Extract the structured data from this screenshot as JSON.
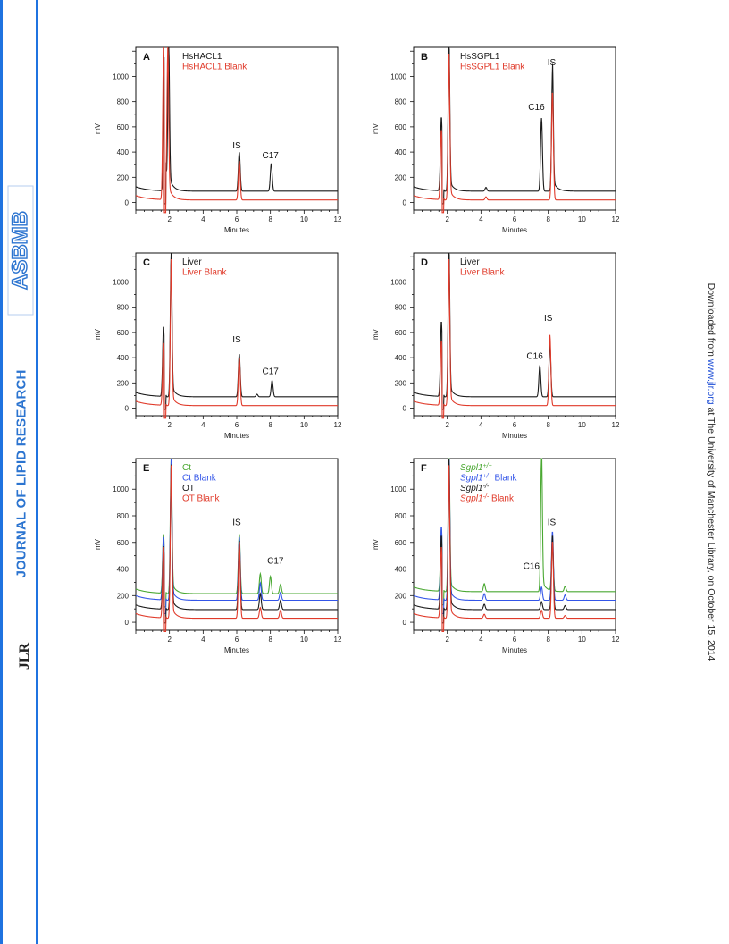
{
  "journal": {
    "title": "JOURNAL OF LIPID RESEARCH",
    "logo_text": "ASBMB",
    "jlr_mark": "JLR"
  },
  "download_note": {
    "prefix": "Downloaded from ",
    "link": "www.jlr.org",
    "suffix": " at The University of Manchester Library, on October 15, 2014"
  },
  "colors": {
    "sidebar_bar": "#1f73e0",
    "black": "#1a1a1a",
    "red": "#e03a2a",
    "green": "#4aa832",
    "blue": "#3355e8"
  },
  "chart_data": [
    {
      "panel": "A",
      "type": "line",
      "xlabel": "Minutes",
      "ylabel": "mV",
      "xticks": [
        2,
        4,
        6,
        8,
        10,
        12
      ],
      "yticks": [
        0,
        200,
        400,
        600,
        800,
        1000
      ],
      "xlim": [
        0,
        12
      ],
      "ylim": [
        -60,
        1230
      ],
      "series": [
        {
          "name": "HsHACL1",
          "color": "black",
          "baseline": 90,
          "peaks": [
            {
              "x": 1.7,
              "h": 1150
            },
            {
              "x": 1.95,
              "h": 1120
            },
            {
              "x": 6.15,
              "h": 310
            },
            {
              "x": 8.05,
              "h": 220
            }
          ]
        },
        {
          "name": "HsHACL1 Blank",
          "color": "red",
          "baseline": 20,
          "peaks": [
            {
              "x": 1.65,
              "h": 1160
            },
            {
              "x": 1.9,
              "h": 1140
            },
            {
              "x": 6.15,
              "h": 310
            }
          ]
        }
      ],
      "annotations": [
        {
          "text": "IS",
          "x": 6.0,
          "y": 430
        },
        {
          "text": "C17",
          "x": 8.0,
          "y": 350
        }
      ]
    },
    {
      "panel": "B",
      "type": "line",
      "xlabel": "Minutes",
      "ylabel": "mV",
      "xticks": [
        2,
        4,
        6,
        8,
        10,
        12
      ],
      "yticks": [
        0,
        200,
        400,
        600,
        800,
        1000
      ],
      "xlim": [
        0,
        12
      ],
      "ylim": [
        -60,
        1230
      ],
      "series": [
        {
          "name": "HsSGPL1",
          "color": "black",
          "baseline": 90,
          "peaks": [
            {
              "x": 1.65,
              "h": 590
            },
            {
              "x": 2.1,
              "h": 1130
            },
            {
              "x": 4.3,
              "h": 30
            },
            {
              "x": 7.6,
              "h": 580
            },
            {
              "x": 8.25,
              "h": 940
            }
          ]
        },
        {
          "name": "HsSGPL1 Blank",
          "color": "red",
          "baseline": 20,
          "peaks": [
            {
              "x": 1.65,
              "h": 560
            },
            {
              "x": 2.1,
              "h": 1070
            },
            {
              "x": 4.3,
              "h": 25
            },
            {
              "x": 8.25,
              "h": 860
            }
          ]
        }
      ],
      "annotations": [
        {
          "text": "IS",
          "x": 8.2,
          "y": 1090
        },
        {
          "text": "C16",
          "x": 7.3,
          "y": 735
        }
      ]
    },
    {
      "panel": "C",
      "type": "line",
      "xlabel": "Minutes",
      "ylabel": "mV",
      "xticks": [
        2,
        4,
        6,
        8,
        10,
        12
      ],
      "yticks": [
        0,
        200,
        400,
        600,
        800,
        1000
      ],
      "xlim": [
        0,
        12
      ],
      "ylim": [
        -60,
        1230
      ],
      "series": [
        {
          "name": "Liver",
          "color": "black",
          "baseline": 90,
          "peaks": [
            {
              "x": 1.65,
              "h": 560
            },
            {
              "x": 2.1,
              "h": 1130
            },
            {
              "x": 6.15,
              "h": 340
            },
            {
              "x": 7.2,
              "h": 20
            },
            {
              "x": 8.1,
              "h": 130
            }
          ]
        },
        {
          "name": "Liver Blank",
          "color": "red",
          "baseline": 20,
          "peaks": [
            {
              "x": 1.65,
              "h": 500
            },
            {
              "x": 2.1,
              "h": 1070
            },
            {
              "x": 6.15,
              "h": 380
            }
          ]
        }
      ],
      "annotations": [
        {
          "text": "IS",
          "x": 6.0,
          "y": 520
        },
        {
          "text": "C17",
          "x": 8.0,
          "y": 270
        }
      ]
    },
    {
      "panel": "D",
      "type": "line",
      "xlabel": "Minutes",
      "ylabel": "mV",
      "xticks": [
        2,
        4,
        6,
        8,
        10,
        12
      ],
      "yticks": [
        0,
        200,
        400,
        600,
        800,
        1000
      ],
      "xlim": [
        0,
        12
      ],
      "ylim": [
        -60,
        1230
      ],
      "series": [
        {
          "name": "Liver",
          "color": "black",
          "baseline": 90,
          "peaks": [
            {
              "x": 1.65,
              "h": 600
            },
            {
              "x": 2.1,
              "h": 1130
            },
            {
              "x": 7.5,
              "h": 250
            },
            {
              "x": 8.1,
              "h": 420
            }
          ]
        },
        {
          "name": "Liver Blank",
          "color": "red",
          "baseline": 20,
          "peaks": [
            {
              "x": 1.65,
              "h": 520
            },
            {
              "x": 2.1,
              "h": 1070
            },
            {
              "x": 8.1,
              "h": 560
            }
          ]
        }
      ],
      "annotations": [
        {
          "text": "IS",
          "x": 8.0,
          "y": 690
        },
        {
          "text": "C16",
          "x": 7.2,
          "y": 390
        }
      ]
    },
    {
      "panel": "E",
      "type": "line",
      "xlabel": "Minutes",
      "ylabel": "mV",
      "xticks": [
        2,
        4,
        6,
        8,
        10,
        12
      ],
      "yticks": [
        0,
        200,
        400,
        600,
        800,
        1000
      ],
      "xlim": [
        0,
        12
      ],
      "ylim": [
        -60,
        1230
      ],
      "series": [
        {
          "name": "Ct",
          "color": "green",
          "baseline": 215,
          "peaks": [
            {
              "x": 1.65,
              "h": 450
            },
            {
              "x": 2.1,
              "h": 1000
            },
            {
              "x": 6.15,
              "h": 450
            },
            {
              "x": 7.4,
              "h": 150
            },
            {
              "x": 8.0,
              "h": 130
            },
            {
              "x": 8.6,
              "h": 70
            }
          ]
        },
        {
          "name": "Ct Blank",
          "color": "blue",
          "baseline": 165,
          "peaks": [
            {
              "x": 1.65,
              "h": 480
            },
            {
              "x": 2.1,
              "h": 1000
            },
            {
              "x": 6.15,
              "h": 480
            },
            {
              "x": 7.4,
              "h": 130
            },
            {
              "x": 8.6,
              "h": 60
            }
          ]
        },
        {
          "name": "OT",
          "color": "black",
          "baseline": 95,
          "peaks": [
            {
              "x": 1.65,
              "h": 480
            },
            {
              "x": 2.1,
              "h": 1000
            },
            {
              "x": 6.15,
              "h": 520
            },
            {
              "x": 7.4,
              "h": 120
            },
            {
              "x": 8.6,
              "h": 70
            }
          ]
        },
        {
          "name": "OT Blank",
          "color": "red",
          "baseline": 30,
          "peaks": [
            {
              "x": 1.65,
              "h": 540
            },
            {
              "x": 2.1,
              "h": 1060
            },
            {
              "x": 6.15,
              "h": 580
            },
            {
              "x": 7.4,
              "h": 80
            },
            {
              "x": 8.6,
              "h": 60
            }
          ]
        }
      ],
      "annotations": [
        {
          "text": "IS",
          "x": 6.0,
          "y": 730
        },
        {
          "text": "C17",
          "x": 8.3,
          "y": 440
        }
      ]
    },
    {
      "panel": "F",
      "type": "line",
      "xlabel": "Minutes",
      "ylabel": "mV",
      "xticks": [
        2,
        4,
        6,
        8,
        10,
        12
      ],
      "yticks": [
        0,
        200,
        400,
        600,
        800,
        1000
      ],
      "xlim": [
        0,
        12
      ],
      "ylim": [
        -60,
        1230
      ],
      "series": [
        {
          "name": "Sgpl1+/+",
          "color": "green",
          "baseline": 230,
          "peaks": [
            {
              "x": 1.65,
              "h": 470
            },
            {
              "x": 2.1,
              "h": 1020
            },
            {
              "x": 4.2,
              "h": 60
            },
            {
              "x": 7.6,
              "h": 1000
            },
            {
              "x": 8.25,
              "h": 330
            },
            {
              "x": 9.0,
              "h": 40
            }
          ]
        },
        {
          "name": "Sgpl1+/+ Blank",
          "color": "blue",
          "baseline": 165,
          "peaks": [
            {
              "x": 1.65,
              "h": 560
            },
            {
              "x": 2.1,
              "h": 1040
            },
            {
              "x": 4.2,
              "h": 50
            },
            {
              "x": 7.6,
              "h": 100
            },
            {
              "x": 8.25,
              "h": 520
            },
            {
              "x": 9.0,
              "h": 40
            }
          ]
        },
        {
          "name": "Sgpl1-/-",
          "color": "black",
          "baseline": 95,
          "peaks": [
            {
              "x": 1.65,
              "h": 560
            },
            {
              "x": 2.1,
              "h": 1060
            },
            {
              "x": 4.2,
              "h": 40
            },
            {
              "x": 7.6,
              "h": 60
            },
            {
              "x": 8.25,
              "h": 560
            },
            {
              "x": 9.0,
              "h": 30
            }
          ]
        },
        {
          "name": "Sgpl1-/- Blank",
          "color": "red",
          "baseline": 30,
          "peaks": [
            {
              "x": 1.65,
              "h": 540
            },
            {
              "x": 2.1,
              "h": 1060
            },
            {
              "x": 4.2,
              "h": 30
            },
            {
              "x": 7.6,
              "h": 60
            },
            {
              "x": 8.25,
              "h": 580
            },
            {
              "x": 9.0,
              "h": 20
            }
          ]
        }
      ],
      "annotations": [
        {
          "text": "IS",
          "x": 8.2,
          "y": 730
        },
        {
          "text": "C16",
          "x": 7.0,
          "y": 400
        }
      ]
    }
  ]
}
